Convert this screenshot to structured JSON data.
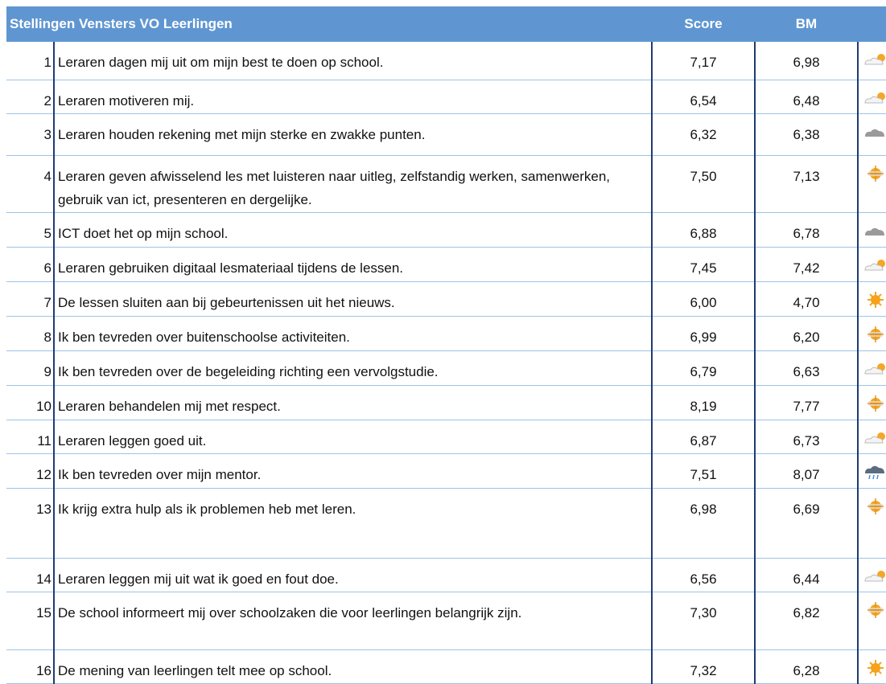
{
  "header": {
    "title": "Stellingen Vensters VO Leerlingen",
    "score": "Score",
    "bm": "BM"
  },
  "rows": [
    {
      "number": 1,
      "statement": "Leraren dagen mij uit om mijn best te doen op school.",
      "score": "7,17",
      "bm": "6,98"
    },
    {
      "number": 2,
      "statement": "Leraren motiveren mij.",
      "score": "6,54",
      "bm": "6,48"
    },
    {
      "number": 3,
      "statement": "Leraren houden rekening met mijn sterke en zwakke punten.",
      "score": "6,32",
      "bm": "6,38"
    },
    {
      "number": 4,
      "statement": "Leraren geven afwisselend les met luisteren naar uitleg, zelfstandig werken, samenwerken, gebruik van ict, presenteren en dergelijke.",
      "score": "7,50",
      "bm": "7,13"
    },
    {
      "number": 5,
      "statement": "ICT doet het op mijn school.",
      "score": "6,88",
      "bm": "6,78"
    },
    {
      "number": 6,
      "statement": "Leraren gebruiken digitaal lesmateriaal tijdens de lessen.",
      "score": "7,45",
      "bm": "7,42"
    },
    {
      "number": 7,
      "statement": "De lessen sluiten aan bij gebeurtenissen uit het nieuws.",
      "score": "6,00",
      "bm": "4,70"
    },
    {
      "number": 8,
      "statement": "Ik ben tevreden over buitenschoolse activiteiten.",
      "score": "6,99",
      "bm": "6,20"
    },
    {
      "number": 9,
      "statement": "Ik ben tevreden over de begeleiding richting een vervolgstudie.",
      "score": "6,79",
      "bm": "6,63"
    },
    {
      "number": 10,
      "statement": "Leraren behandelen mij met respect.",
      "score": "8,19",
      "bm": "7,77"
    },
    {
      "number": 11,
      "statement": "Leraren leggen goed uit.",
      "score": "6,87",
      "bm": "6,73"
    },
    {
      "number": 12,
      "statement": "Ik ben tevreden over mijn mentor.",
      "score": "7,51",
      "bm": "8,07"
    },
    {
      "number": 13,
      "statement": "Ik krijg extra hulp als ik problemen heb met leren.",
      "score": "6,98",
      "bm": "6,69"
    },
    {
      "number": 14,
      "statement": "Leraren leggen mij uit wat ik goed en fout doe.",
      "score": "6,56",
      "bm": "6,44"
    },
    {
      "number": 15,
      "statement": "De school informeert mij over schoolzaken die voor leerlingen belangrijk zijn.",
      "score": "7,30",
      "bm": "6,82"
    },
    {
      "number": 16,
      "statement": "De mening van leerlingen telt mee op school.",
      "score": "7,32",
      "bm": "6,28"
    }
  ]
}
